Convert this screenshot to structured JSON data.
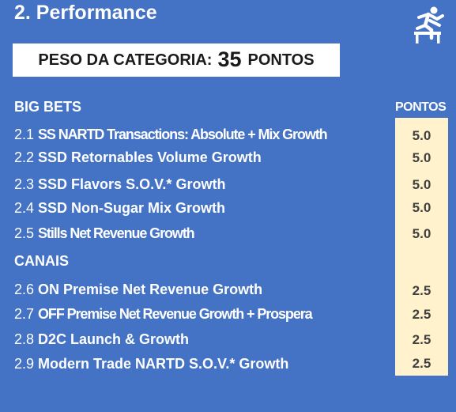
{
  "header": {
    "title": "2. Performance",
    "weight_label": "PESO DA CATEGORIA:",
    "weight_value": "35",
    "weight_unit": "PONTOS"
  },
  "points_header": "PONTOS",
  "sections": [
    {
      "title": "BIG BETS",
      "items": [
        {
          "num": "2.1",
          "name": "SS NARTD Transactions: Absolute + Mix Growth",
          "points": "5.0"
        },
        {
          "num": "2.2",
          "name": "SSD Retornables Volume Growth",
          "points": "5.0"
        },
        {
          "num": "2.3",
          "name": "SSD Flavors S.O.V.* Growth",
          "points": "5.0"
        },
        {
          "num": "2.4",
          "name": "SSD Non-Sugar Mix Growth",
          "points": "5.0"
        },
        {
          "num": "2.5",
          "name": "Stills Net Revenue Growth",
          "points": "5.0"
        }
      ]
    },
    {
      "title": "CANAIS",
      "items": [
        {
          "num": "2.6",
          "name": "ON Premise Net Revenue Growth",
          "points": "2.5"
        },
        {
          "num": "2.7",
          "name": "OFF Premise Net Revenue Growth + Prospera",
          "points": "2.5"
        },
        {
          "num": "2.8",
          "name": "D2C Launch & Growth",
          "points": "2.5"
        },
        {
          "num": "2.9",
          "name": "Modern Trade NARTD S.O.V.* Growth",
          "points": "2.5"
        }
      ]
    }
  ],
  "colors": {
    "background": "#4472c4",
    "points_column": "#fff2cc",
    "points_text": "#404040",
    "box": "#ffffff"
  },
  "icons": {
    "header": "hurdle-runner-icon"
  }
}
